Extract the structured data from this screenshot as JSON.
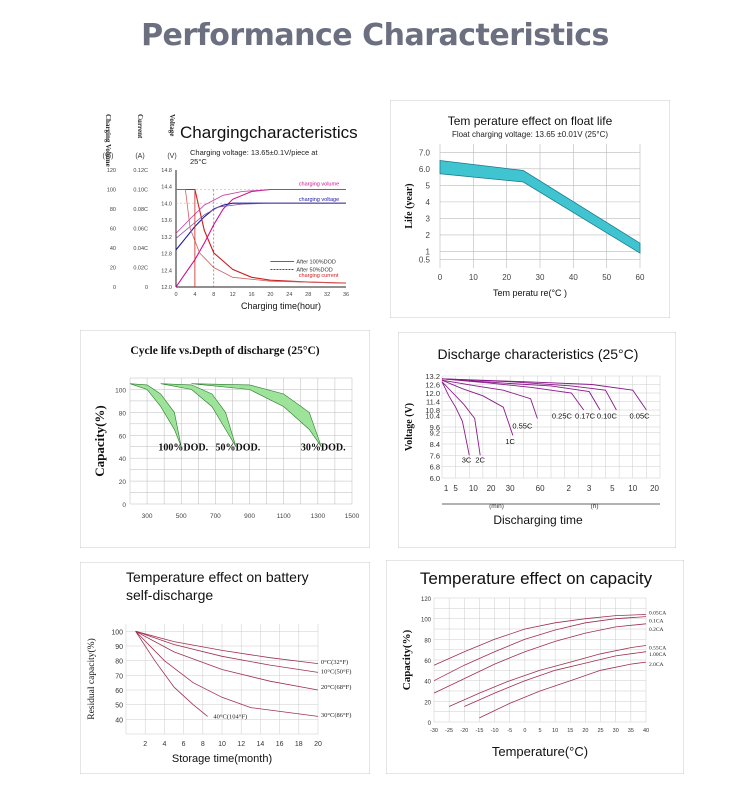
{
  "page": {
    "title": "Performance Characteristics"
  },
  "colors": {
    "brand_gray": "#6b6f80",
    "teal": "#40c4d0",
    "green": "#9ee39a",
    "grid": "#bbbbbb"
  },
  "chart_data": [
    {
      "type": "line",
      "title": "Chargingcharacteristics",
      "subtitle": "Charging voltage: 13.65±0.1V/piece at 25°C",
      "xlabel": "Charging time(hour)",
      "y_axis_titles": [
        "Charging Volume",
        "Current",
        "Voltage"
      ],
      "y_units": [
        "(%)",
        "(A)",
        "(V)"
      ],
      "x_ticks": [
        0,
        4,
        8,
        12,
        16,
        20,
        24,
        28,
        32,
        36
      ],
      "y_ticks_volume": [
        0,
        20,
        40,
        60,
        80,
        100,
        120
      ],
      "y_ticks_current": [
        "0",
        "0.02C",
        "0.04C",
        "0.06C",
        "0.08C",
        "0.10C",
        "0.12C"
      ],
      "y_ticks_voltage": [
        12.0,
        12.4,
        12.8,
        13.2,
        13.6,
        14.0,
        14.4,
        14.8
      ],
      "xlim": [
        0,
        36
      ],
      "ylim": [
        0,
        120
      ],
      "series": [
        {
          "name": "charging volume",
          "color": "#d01090",
          "x": [
            0,
            2,
            4,
            6,
            8,
            10,
            12,
            16,
            20,
            28,
            36
          ],
          "y": [
            0,
            14,
            28,
            45,
            64,
            80,
            90,
            98,
            100,
            100,
            100
          ]
        },
        {
          "name": "charging voltage",
          "color": "#1a1a9e",
          "x": [
            0,
            2,
            4,
            6,
            8,
            10,
            12,
            16,
            20,
            28,
            36
          ],
          "y": [
            38,
            50,
            62,
            72,
            80,
            84,
            86,
            86,
            86,
            86,
            86
          ]
        },
        {
          "name": "charging current",
          "color": "#cc2020",
          "x": [
            0,
            1,
            2,
            3,
            4,
            6,
            8,
            12,
            16,
            20,
            28,
            36
          ],
          "y": [
            100,
            100,
            100,
            100,
            100,
            58,
            35,
            18,
            10,
            7,
            5,
            4
          ]
        },
        {
          "name": "After 100%DOD",
          "color": "#333333",
          "x": [
            0,
            4
          ],
          "y": [
            100,
            100
          ]
        },
        {
          "name": "After 50%DOD",
          "color": "#333333",
          "x": [
            0,
            4
          ],
          "y": [
            100,
            100
          ]
        }
      ],
      "legend": [
        "After 100%DOD",
        "After 50%DOD"
      ],
      "series_labels": [
        "charging volume",
        "charging voltage",
        "charging current"
      ]
    },
    {
      "type": "area",
      "title": "Tem perature effect on float life",
      "subtitle": "Float charging voltage: 13.65 ±0.01V (25°C)",
      "xlabel": "Tem peratu re(°C )",
      "ylabel": "Life (year)",
      "x_ticks": [
        0,
        10,
        20,
        30,
        40,
        50,
        60
      ],
      "y_ticks": [
        "0.5",
        "1",
        "2",
        "3",
        "4",
        "5",
        "6.0",
        "7.0"
      ],
      "xlim": [
        0,
        60
      ],
      "ylim": [
        0,
        7.5
      ],
      "upper": {
        "x": [
          0,
          25,
          60
        ],
        "y": [
          6.5,
          5.9,
          1.5
        ]
      },
      "lower": {
        "x": [
          0,
          25,
          60
        ],
        "y": [
          5.7,
          5.2,
          0.9
        ]
      }
    },
    {
      "type": "area",
      "title": "Cycle life vs.Depth of discharge (25°C)",
      "ylabel": "Capacity(%)",
      "x_ticks": [
        300,
        500,
        700,
        900,
        1100,
        1300,
        1500
      ],
      "y_ticks": [
        0,
        20,
        40,
        60,
        80,
        100
      ],
      "xlim": [
        200,
        1500
      ],
      "ylim": [
        0,
        110
      ],
      "series": [
        {
          "name": "100%DOD.",
          "x": [
            200,
            300,
            380,
            460,
            500
          ],
          "upper": [
            105,
            104,
            96,
            80,
            50
          ],
          "lower": [
            105,
            100,
            85,
            65,
            50
          ]
        },
        {
          "name": "50%DOD.",
          "x": [
            380,
            560,
            680,
            760,
            820
          ],
          "upper": [
            105,
            104,
            96,
            80,
            50
          ],
          "lower": [
            105,
            100,
            85,
            65,
            50
          ]
        },
        {
          "name": "30%DOD.",
          "x": [
            560,
            900,
            1100,
            1250,
            1320
          ],
          "upper": [
            105,
            104,
            96,
            80,
            50
          ],
          "lower": [
            105,
            100,
            85,
            65,
            50
          ]
        }
      ]
    },
    {
      "type": "line",
      "title": "Discharge characteristics (25°C)",
      "xlabel": "Discharging time",
      "ylabel": "Voltage (V)",
      "x_ticks": [
        "1",
        "5",
        "10",
        "20",
        "30",
        "60",
        "2",
        "3",
        "5",
        "10",
        "20"
      ],
      "x_units": [
        "(min)",
        "(h)"
      ],
      "y_ticks": [
        6.0,
        6.8,
        7.6,
        8.4,
        9.2,
        9.6,
        10.4,
        10.8,
        11.4,
        12.0,
        12.6,
        13.2
      ],
      "ylim": [
        6.0,
        13.2
      ],
      "series": [
        {
          "name": "3C",
          "x": [
            0,
            0.5,
            1,
            1.5,
            2
          ],
          "y": [
            12.8,
            11.8,
            11.0,
            10.0,
            7.6
          ]
        },
        {
          "name": "2C",
          "x": [
            0,
            0.8,
            1.6,
            2.4,
            2.8
          ],
          "y": [
            12.8,
            12.0,
            11.2,
            10.2,
            7.6
          ]
        },
        {
          "name": "1C",
          "x": [
            0,
            1.5,
            3.0,
            4.5,
            5.2
          ],
          "y": [
            12.9,
            12.3,
            11.8,
            11.0,
            9.0
          ]
        },
        {
          "name": "0.55C",
          "x": [
            0,
            2.5,
            4.5,
            6.5,
            7.0
          ],
          "y": [
            12.9,
            12.5,
            12.2,
            11.6,
            10.2
          ]
        },
        {
          "name": "0.25C",
          "x": [
            0,
            3.5,
            6.5,
            9.5,
            10.4
          ],
          "y": [
            13.0,
            12.7,
            12.4,
            12.0,
            10.8
          ]
        },
        {
          "name": "0.17C",
          "x": [
            0,
            4.5,
            8.0,
            10.8,
            11.6
          ],
          "y": [
            13.0,
            12.7,
            12.5,
            12.1,
            10.8
          ]
        },
        {
          "name": "0.10C",
          "x": [
            0,
            5.0,
            9.5,
            12.0,
            12.8
          ],
          "y": [
            13.0,
            12.8,
            12.5,
            12.2,
            10.8
          ]
        },
        {
          "name": "0.05C",
          "x": [
            0,
            6.0,
            11.0,
            14.0,
            15.0
          ],
          "y": [
            13.0,
            12.8,
            12.6,
            12.2,
            10.8
          ]
        }
      ]
    },
    {
      "type": "line",
      "title": "Temperature effect on battery self-discharge",
      "xlabel": "Storage time(month)",
      "ylabel": "Residual capacity(%)",
      "x_ticks": [
        2,
        4,
        6,
        8,
        10,
        12,
        14,
        16,
        18,
        20
      ],
      "y_ticks": [
        40,
        50,
        60,
        70,
        80,
        90,
        100
      ],
      "xlim": [
        0,
        20
      ],
      "ylim": [
        30,
        105
      ],
      "series": [
        {
          "name": "0°C(32°F)",
          "x": [
            1,
            5,
            10,
            15,
            20
          ],
          "y": [
            100,
            93,
            87,
            82,
            78
          ]
        },
        {
          "name": "10°C(50°F)",
          "x": [
            1,
            5,
            10,
            15,
            20
          ],
          "y": [
            100,
            91,
            83,
            77,
            72
          ]
        },
        {
          "name": "20°C(68°F)",
          "x": [
            1,
            5,
            10,
            15,
            20
          ],
          "y": [
            100,
            86,
            74,
            66,
            60
          ]
        },
        {
          "name": "30°C(86°F)",
          "x": [
            1,
            4,
            7,
            10,
            13,
            20
          ],
          "y": [
            100,
            80,
            65,
            55,
            48,
            42
          ]
        },
        {
          "name": "40°C(104°F)",
          "x": [
            1,
            3,
            5,
            7,
            8.5
          ],
          "y": [
            100,
            80,
            62,
            50,
            42
          ]
        }
      ]
    },
    {
      "type": "line",
      "title": "Temperature effect on capacity",
      "xlabel": "Temperature(°C)",
      "ylabel": "Capacity(%)",
      "x_ticks": [
        -30,
        -25,
        -20,
        -15,
        -10,
        -5,
        0,
        5,
        10,
        15,
        20,
        25,
        30,
        35,
        40
      ],
      "y_ticks": [
        0,
        20,
        40,
        60,
        80,
        100,
        120
      ],
      "xlim": [
        -30,
        40
      ],
      "ylim": [
        0,
        120
      ],
      "series": [
        {
          "name": "0.05CA",
          "x": [
            -30,
            -20,
            -10,
            0,
            10,
            20,
            30,
            40
          ],
          "y": [
            55,
            68,
            80,
            90,
            96,
            100,
            103,
            104
          ]
        },
        {
          "name": "0.1CA",
          "x": [
            -30,
            -20,
            -10,
            0,
            10,
            20,
            30,
            40
          ],
          "y": [
            40,
            55,
            68,
            80,
            89,
            96,
            100,
            102
          ]
        },
        {
          "name": "0.2CA",
          "x": [
            -30,
            -20,
            -10,
            0,
            10,
            20,
            30,
            40
          ],
          "y": [
            28,
            42,
            56,
            68,
            78,
            86,
            92,
            95
          ]
        },
        {
          "name": "0.55CA",
          "x": [
            -25,
            -15,
            -5,
            5,
            15,
            25,
            35,
            40
          ],
          "y": [
            15,
            28,
            40,
            50,
            58,
            66,
            72,
            74
          ]
        },
        {
          "name": "1.00CA",
          "x": [
            -20,
            -10,
            0,
            10,
            20,
            30,
            40
          ],
          "y": [
            15,
            28,
            40,
            50,
            57,
            64,
            68
          ]
        },
        {
          "name": "2.0CA",
          "x": [
            -15,
            -5,
            5,
            15,
            25,
            35,
            40
          ],
          "y": [
            4,
            18,
            30,
            40,
            50,
            56,
            58
          ]
        }
      ]
    }
  ]
}
